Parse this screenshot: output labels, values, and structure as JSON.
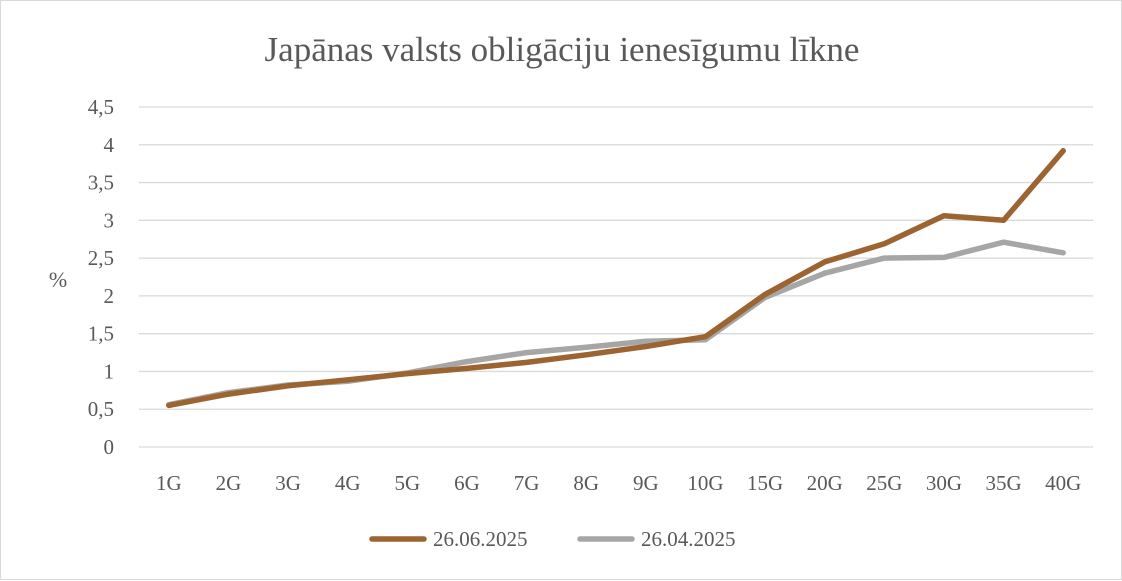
{
  "chart_data": {
    "type": "line",
    "title": "Japānas valsts obligāciju ienesīgumu līkne",
    "xlabel": "",
    "ylabel": "%",
    "categories": [
      "1G",
      "2G",
      "3G",
      "4G",
      "5G",
      "6G",
      "7G",
      "8G",
      "9G",
      "10G",
      "15G",
      "20G",
      "25G",
      "30G",
      "35G",
      "40G"
    ],
    "ylim": [
      0,
      4.5
    ],
    "yticks": [
      "0",
      "0,5",
      "1",
      "1,5",
      "2",
      "2,5",
      "3",
      "3,5",
      "4",
      "4,5"
    ],
    "grid": true,
    "legend_position": "bottom",
    "series": [
      {
        "name": "26.06.2025",
        "color": "#9c6430",
        "values": [
          0.55,
          0.7,
          0.81,
          0.89,
          0.97,
          1.04,
          1.12,
          1.22,
          1.33,
          1.46,
          2.02,
          2.45,
          2.69,
          3.06,
          3.0,
          3.92
        ]
      },
      {
        "name": "26.04.2025",
        "color": "#a6a6a6",
        "values": [
          0.56,
          0.72,
          0.82,
          0.87,
          0.98,
          1.13,
          1.25,
          1.32,
          1.4,
          1.42,
          1.98,
          2.3,
          2.5,
          2.51,
          2.71,
          2.57
        ]
      }
    ]
  }
}
